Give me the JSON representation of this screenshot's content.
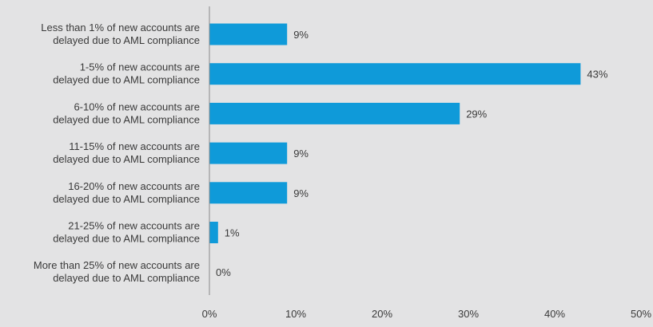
{
  "chart_data": {
    "type": "bar",
    "orientation": "horizontal",
    "categories": [
      [
        "Less than 1% of new accounts are",
        "delayed due to AML compliance"
      ],
      [
        "1-5% of new accounts are",
        "delayed due to AML compliance"
      ],
      [
        "6-10% of new accounts are",
        "delayed due to AML compliance"
      ],
      [
        "11-15% of new accounts are",
        "delayed due to AML compliance"
      ],
      [
        "16-20% of new accounts are",
        "delayed due to AML compliance"
      ],
      [
        "21-25% of new accounts are",
        "delayed due to AML compliance"
      ],
      [
        "More than 25% of new accounts are",
        "delayed due to AML compliance"
      ]
    ],
    "values": [
      9,
      43,
      29,
      9,
      9,
      1,
      0
    ],
    "value_labels": [
      "9%",
      "43%",
      "29%",
      "9%",
      "9%",
      "1%",
      "0%"
    ],
    "xlim": [
      0,
      50
    ],
    "xticks": [
      0,
      10,
      20,
      30,
      40,
      50
    ],
    "xtick_labels": [
      "0%",
      "10%",
      "20%",
      "30%",
      "40%",
      "50%"
    ],
    "title": "",
    "xlabel": "",
    "ylabel": "",
    "grid": false,
    "bar_color": "#0f9ad9",
    "axis_color": "#8a8a8a",
    "text_color": "#3a3a3a",
    "background_color": "#e3e3e4"
  }
}
